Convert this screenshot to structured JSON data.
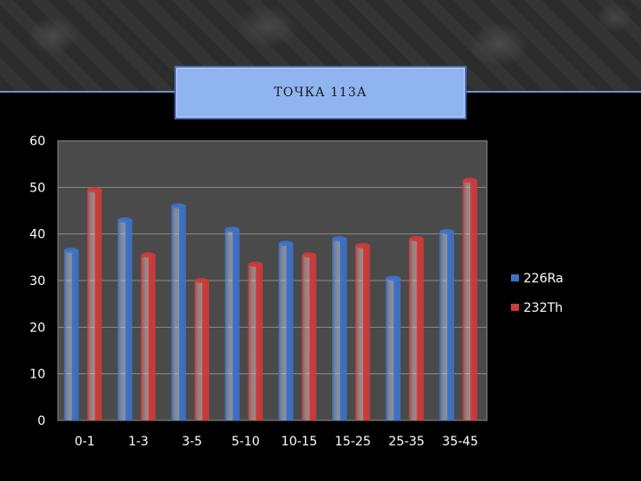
{
  "title": "ТОЧКА 113А",
  "chart_data": {
    "type": "bar",
    "categories": [
      "0-1",
      "1-3",
      "3-5",
      "5-10",
      "10-15",
      "15-25",
      "25-35",
      "35-45"
    ],
    "series": [
      {
        "name": "226Ra",
        "values": [
          36.5,
          43,
          46,
          41,
          38,
          39,
          30.5,
          40.5
        ],
        "color": "#3d72c9"
      },
      {
        "name": "232Th",
        "values": [
          49.5,
          35.5,
          30,
          33.5,
          35.5,
          37.5,
          39,
          51.5
        ],
        "color": "#d03a3a"
      }
    ],
    "ylim": [
      0,
      60
    ],
    "yticks": [
      0,
      10,
      20,
      30,
      40,
      50,
      60
    ],
    "grid": true,
    "legend": "right",
    "background_color": "#4a4a4a"
  }
}
